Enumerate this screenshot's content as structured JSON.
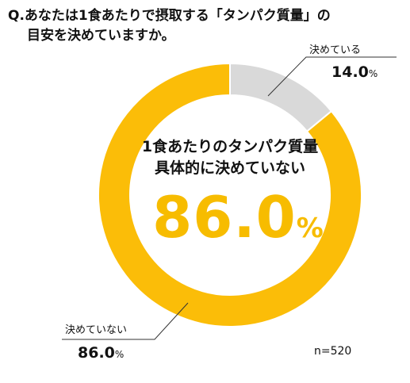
{
  "title": {
    "line1": "Q.あなたは1食あたりで摂取する「タンパク質量」の",
    "line2": "目安を決めていますか。"
  },
  "center": {
    "label_line1": "1食あたりのタンパク質量",
    "label_line2": "具体的に決めていない",
    "value": "86.0",
    "unit": "%"
  },
  "sample_size": "n=520",
  "chart_data": {
    "type": "pie",
    "variant": "donut",
    "categories": [
      "決めている",
      "決めていない"
    ],
    "values": [
      14.0,
      86.0
    ],
    "value_labels": [
      "14.0",
      "86.0"
    ],
    "unit": "%",
    "colors": [
      "#d9d9d9",
      "#fbbd08"
    ],
    "start_angle_deg": 0,
    "direction": "clockwise"
  }
}
